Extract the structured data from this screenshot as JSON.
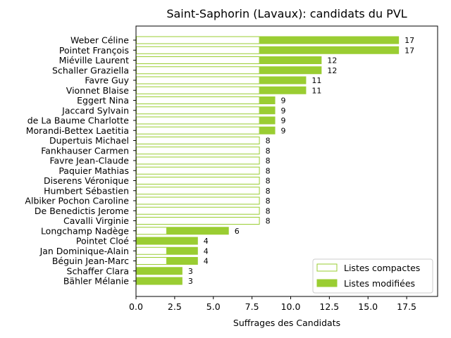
{
  "chart_data": {
    "type": "bar",
    "orientation": "horizontal",
    "stacked": true,
    "title": "Saint-Saphorin (Lavaux): candidats du PVL",
    "xlabel": "Suffrages des Candidats",
    "ylabel": "",
    "xlim": [
      0,
      19.5
    ],
    "xticks": [
      "0.0",
      "2.5",
      "5.0",
      "7.5",
      "10.0",
      "12.5",
      "15.0",
      "17.5"
    ],
    "tick_values": [
      0,
      2.5,
      5,
      7.5,
      10,
      12.5,
      15,
      17.5
    ],
    "grid": false,
    "legend_position": "lower-right",
    "categories": [
      "Weber Céline",
      "Pointet François",
      "Miéville Laurent",
      "Schaller Graziella",
      "Favre Guy",
      "Vionnet Blaise",
      "Eggert Nina",
      "Jaccard Sylvain",
      "de La Baume Charlotte",
      "Morandi-Bettex Laetitia",
      "Dupertuis Michael",
      "Fankhauser Carmen",
      "Favre Jean-Claude",
      "Paquier Mathias",
      "Diserens Véronique",
      "Humbert Sébastien",
      "Albiker Pochon Caroline",
      "De Benedictis Jerome",
      "Cavalli Virginie",
      "Longchamp Nadège",
      "Pointet Cloé",
      "Jan Dominique-Alain",
      "Béguin Jean-Marc",
      "Schaffer Clara",
      "Bähler Mélanie"
    ],
    "series": [
      {
        "name": "Listes compactes",
        "color": "#9acd32",
        "style": "outline",
        "values": [
          8,
          8,
          8,
          8,
          8,
          8,
          8,
          8,
          8,
          8,
          8,
          8,
          8,
          8,
          8,
          8,
          8,
          8,
          8,
          2,
          0,
          2,
          2,
          0,
          0
        ]
      },
      {
        "name": "Listes modifiées",
        "color": "#9acd32",
        "style": "filled",
        "values": [
          9,
          9,
          4,
          4,
          3,
          3,
          1,
          1,
          1,
          1,
          0,
          0,
          0,
          0,
          0,
          0,
          0,
          0,
          0,
          4,
          4,
          2,
          2,
          3,
          3
        ]
      }
    ],
    "totals": [
      "17",
      "17",
      "12",
      "12",
      "11",
      "11",
      "9",
      "9",
      "9",
      "9",
      "8",
      "8",
      "8",
      "8",
      "8",
      "8",
      "8",
      "8",
      "8",
      "6",
      "4",
      "4",
      "4",
      "3",
      "3"
    ]
  }
}
